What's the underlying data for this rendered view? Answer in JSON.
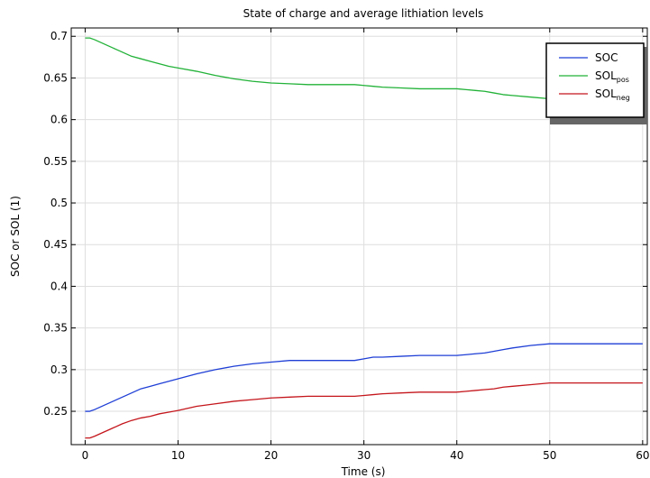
{
  "chart_data": {
    "type": "line",
    "title": "State of charge and average lithiation levels",
    "xlabel": "Time (s)",
    "ylabel": "SOC or SOL (1)",
    "xlim": [
      -1.5,
      60.5
    ],
    "ylim": [
      0.21,
      0.71
    ],
    "xticks": [
      0,
      10,
      20,
      30,
      40,
      50,
      60
    ],
    "yticks": [
      0.25,
      0.3,
      0.35,
      0.4,
      0.45,
      0.5,
      0.55,
      0.6,
      0.65,
      0.7
    ],
    "xtick_labels": [
      "0",
      "10",
      "20",
      "30",
      "40",
      "50",
      "60"
    ],
    "ytick_labels": [
      "0.25",
      "0.3",
      "0.35",
      "0.4",
      "0.45",
      "0.5",
      "0.55",
      "0.6",
      "0.65",
      "0.7"
    ],
    "grid": true,
    "legend_position": "top-right",
    "series": [
      {
        "name": "SOC",
        "name_main": "SOC",
        "name_sub": "",
        "color": "#1f3fd6",
        "x": [
          0,
          0.5,
          1,
          2,
          3,
          4,
          5,
          6,
          7,
          8,
          9,
          10,
          12,
          14,
          16,
          18,
          20,
          22,
          24,
          26,
          28,
          29,
          30,
          31,
          32,
          34,
          36,
          38,
          40,
          41,
          42,
          43,
          44,
          45,
          46,
          48,
          50,
          51,
          55,
          60
        ],
        "y": [
          0.25,
          0.25,
          0.252,
          0.257,
          0.262,
          0.267,
          0.272,
          0.277,
          0.28,
          0.283,
          0.286,
          0.289,
          0.295,
          0.3,
          0.304,
          0.307,
          0.309,
          0.311,
          0.311,
          0.311,
          0.311,
          0.311,
          0.313,
          0.315,
          0.315,
          0.316,
          0.317,
          0.317,
          0.317,
          0.318,
          0.319,
          0.32,
          0.322,
          0.324,
          0.326,
          0.329,
          0.331,
          0.331,
          0.331,
          0.331
        ]
      },
      {
        "name": "SOLpos",
        "name_main": "SOL",
        "name_sub": "pos",
        "color": "#22b238",
        "x": [
          0,
          0.5,
          1,
          2,
          3,
          4,
          5,
          6,
          7,
          8,
          9,
          10,
          12,
          14,
          16,
          18,
          20,
          22,
          24,
          26,
          28,
          29,
          30,
          31,
          32,
          34,
          36,
          38,
          40,
          41,
          42,
          43,
          44,
          45,
          46,
          48,
          50,
          51,
          55,
          60
        ],
        "y": [
          0.698,
          0.698,
          0.696,
          0.691,
          0.686,
          0.681,
          0.676,
          0.673,
          0.67,
          0.667,
          0.664,
          0.662,
          0.658,
          0.653,
          0.649,
          0.646,
          0.644,
          0.643,
          0.642,
          0.642,
          0.642,
          0.642,
          0.641,
          0.64,
          0.639,
          0.638,
          0.637,
          0.637,
          0.637,
          0.636,
          0.635,
          0.634,
          0.632,
          0.63,
          0.629,
          0.627,
          0.625,
          0.625,
          0.625,
          0.625
        ]
      },
      {
        "name": "SOLneg",
        "name_main": "SOL",
        "name_sub": "neg",
        "color": "#c4161c",
        "x": [
          0,
          0.5,
          1,
          2,
          3,
          4,
          5,
          6,
          7,
          8,
          9,
          10,
          12,
          14,
          16,
          18,
          20,
          22,
          24,
          26,
          28,
          29,
          30,
          31,
          32,
          34,
          36,
          38,
          40,
          41,
          42,
          43,
          44,
          45,
          46,
          48,
          50,
          51,
          55,
          60
        ],
        "y": [
          0.218,
          0.218,
          0.22,
          0.225,
          0.23,
          0.235,
          0.239,
          0.242,
          0.244,
          0.247,
          0.249,
          0.251,
          0.256,
          0.259,
          0.262,
          0.264,
          0.266,
          0.267,
          0.268,
          0.268,
          0.268,
          0.268,
          0.269,
          0.27,
          0.271,
          0.272,
          0.273,
          0.273,
          0.273,
          0.274,
          0.275,
          0.276,
          0.277,
          0.279,
          0.28,
          0.282,
          0.284,
          0.284,
          0.284,
          0.284
        ]
      }
    ]
  }
}
